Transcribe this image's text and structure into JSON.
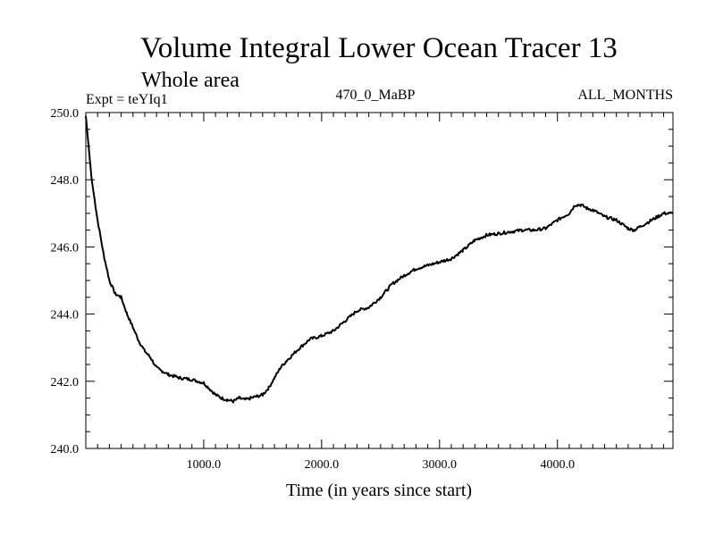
{
  "chart_data": {
    "type": "line",
    "title": "Volume Integral Lower Ocean Tracer 13",
    "subtitle": "Whole area",
    "header_left": "Expt = teYIq1",
    "header_center": "470_0_MaBP",
    "header_right": "ALL_MONTHS",
    "xlabel": "Time (in years since start)",
    "ylabel": "",
    "xlim": [
      0,
      4980
    ],
    "ylim": [
      240.0,
      250.0
    ],
    "x_ticks": [
      1000,
      2000,
      3000,
      4000
    ],
    "x_tick_labels": [
      "1000.0",
      "2000.0",
      "3000.0",
      "4000.0"
    ],
    "y_ticks": [
      240.0,
      242.0,
      244.0,
      246.0,
      248.0,
      250.0
    ],
    "y_tick_labels": [
      "240.0",
      "242.0",
      "244.0",
      "246.0",
      "248.0",
      "250.0"
    ],
    "series": [
      {
        "name": "Volume Integral Lower Ocean Tracer 13",
        "x": [
          0,
          50,
          100,
          150,
          200,
          250,
          300,
          350,
          400,
          450,
          500,
          550,
          600,
          650,
          700,
          800,
          900,
          1000,
          1100,
          1150,
          1200,
          1250,
          1300,
          1350,
          1400,
          1450,
          1500,
          1550,
          1600,
          1650,
          1700,
          1800,
          1900,
          2000,
          2100,
          2200,
          2300,
          2400,
          2500,
          2600,
          2700,
          2800,
          2900,
          3000,
          3100,
          3200,
          3300,
          3400,
          3500,
          3600,
          3700,
          3800,
          3900,
          4000,
          4100,
          4150,
          4200,
          4250,
          4300,
          4400,
          4500,
          4600,
          4650,
          4700,
          4800,
          4900,
          4980
        ],
        "values": [
          249.9,
          248.0,
          246.8,
          245.8,
          245.0,
          244.6,
          244.5,
          244.0,
          243.6,
          243.2,
          242.9,
          242.7,
          242.4,
          242.3,
          242.2,
          242.1,
          242.05,
          241.95,
          241.6,
          241.5,
          241.45,
          241.4,
          241.5,
          241.45,
          241.5,
          241.55,
          241.6,
          241.8,
          242.1,
          242.4,
          242.6,
          242.95,
          243.25,
          243.35,
          243.5,
          243.8,
          244.1,
          244.2,
          244.5,
          244.9,
          245.15,
          245.35,
          245.45,
          245.55,
          245.65,
          245.9,
          246.2,
          246.35,
          246.4,
          246.45,
          246.5,
          246.5,
          246.55,
          246.8,
          247.0,
          247.25,
          247.25,
          247.15,
          247.1,
          246.9,
          246.8,
          246.55,
          246.5,
          246.6,
          246.8,
          247.0,
          247.0
        ]
      }
    ]
  }
}
